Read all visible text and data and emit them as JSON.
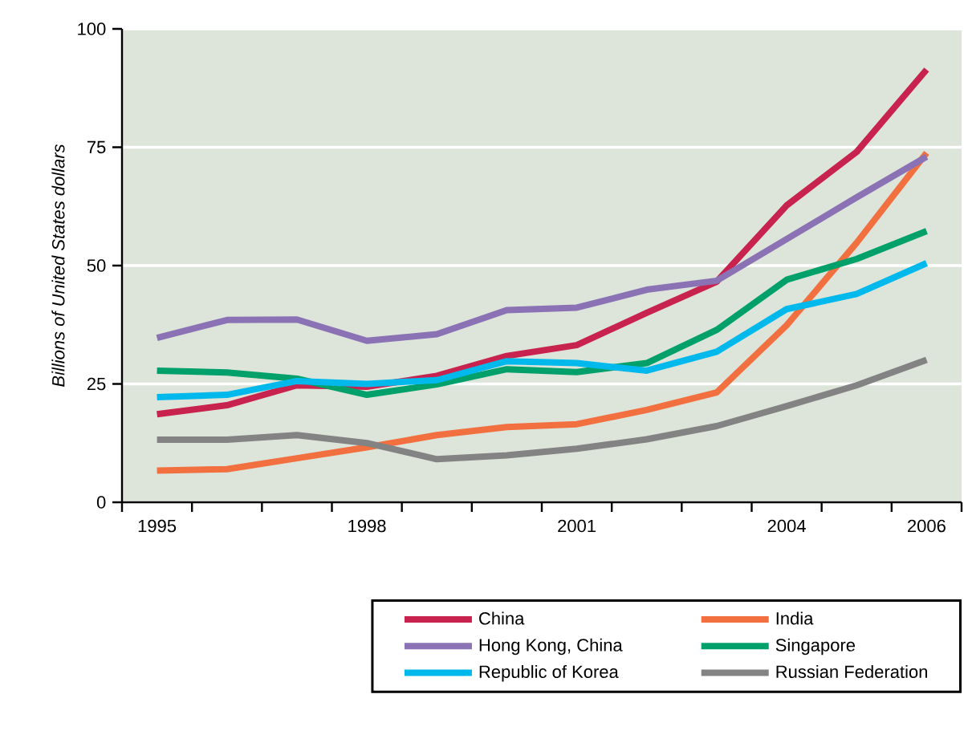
{
  "chart_data": {
    "type": "line",
    "ylabel": "Billions of United States dollars",
    "x": [
      1995,
      1996,
      1997,
      1998,
      1999,
      2000,
      2001,
      2002,
      2003,
      2004,
      2005,
      2006
    ],
    "xlim": [
      1994.5,
      2006.5
    ],
    "xticks": [
      {
        "value": 1994.5,
        "label": null
      },
      1995,
      {
        "value": 1995.5,
        "label": null
      },
      {
        "value": 1996.5,
        "label": null
      },
      {
        "value": 1997.5,
        "label": null
      },
      1998,
      {
        "value": 1998.5,
        "label": null
      },
      {
        "value": 1999.5,
        "label": null
      },
      {
        "value": 2000.5,
        "label": null
      },
      2001,
      {
        "value": 2001.5,
        "label": null
      },
      {
        "value": 2002.5,
        "label": null
      },
      {
        "value": 2003.5,
        "label": null
      },
      2004,
      {
        "value": 2004.5,
        "label": null
      },
      {
        "value": 2005.5,
        "label": null
      },
      2006,
      {
        "value": 2006.5,
        "label": null
      }
    ],
    "ylim": [
      0,
      100
    ],
    "yticks": [
      0,
      25,
      50,
      75,
      100
    ],
    "grid": "y",
    "legend": "bottom",
    "marker": "none",
    "line_style": "solid",
    "series": [
      {
        "name": "China",
        "color": "#c8234f",
        "values": [
          18.6,
          20.5,
          24.7,
          24.4,
          26.7,
          30.9,
          33.2,
          40,
          46.6,
          62.7,
          74,
          91.4
        ]
      },
      {
        "name": "India",
        "color": "#f27040",
        "values": [
          6.7,
          7,
          9.3,
          11.6,
          14.2,
          15.9,
          16.5,
          19.5,
          23.2,
          37.4,
          54.8,
          73.8
        ]
      },
      {
        "name": "Hong Kong, China",
        "color": "#8b72b5",
        "values": [
          34.7,
          38.5,
          38.6,
          34.1,
          35.5,
          40.6,
          41.1,
          44.9,
          46.8,
          55.6,
          64.4,
          73
        ]
      },
      {
        "name": "Singapore",
        "color": "#00a06b",
        "values": [
          27.8,
          27.4,
          26.1,
          22.7,
          24.9,
          28.1,
          27.5,
          29.4,
          36.4,
          47,
          51.4,
          57.3
        ]
      },
      {
        "name": "Republic of Korea",
        "color": "#00b9ec",
        "values": [
          22.2,
          22.7,
          25.6,
          25,
          25.8,
          29.8,
          29.4,
          27.8,
          31.8,
          40.8,
          44,
          50.5
        ]
      },
      {
        "name": "Russian Federation",
        "color": "#838383",
        "values": [
          13.2,
          13.2,
          14.2,
          12.5,
          9.1,
          9.9,
          11.3,
          13.3,
          16.1,
          20.3,
          24.7,
          30.1
        ]
      }
    ]
  }
}
